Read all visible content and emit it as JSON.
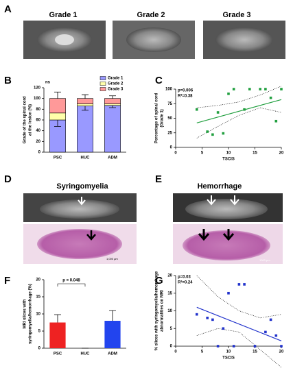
{
  "figures": [
    {
      "label": "A",
      "titles": [
        "Grade 1",
        "Grade 2",
        "Grade 3"
      ]
    },
    {
      "label": "D",
      "title": "Syringomyelia",
      "scale": "1,000 μm"
    },
    {
      "label": "E",
      "title": "Hemorrhage",
      "scale": "1000 μm"
    }
  ],
  "chart_data": [
    {
      "type": "bar",
      "label": "B",
      "stacked": true,
      "ylabel": [
        "Grade of the spinal cord",
        "at the lesion (%)"
      ],
      "categories": [
        "PSC",
        "HUC",
        "ADM"
      ],
      "series": [
        {
          "name": "Grade 1",
          "color": "#9999ff",
          "values": [
            60,
            86,
            87
          ],
          "errors": [
            12,
            8,
            4
          ]
        },
        {
          "name": "Grade 2",
          "color": "#ffffaa",
          "values": [
            13,
            4,
            3
          ]
        },
        {
          "name": "Grade 3",
          "color": "#ff9999",
          "values": [
            27,
            10,
            10
          ],
          "errors": [
            12,
            7,
            5
          ]
        }
      ],
      "ylim": [
        0,
        120
      ],
      "yticks": [
        0,
        20,
        40,
        60,
        80,
        100,
        120
      ],
      "annotations": [
        "ns"
      ],
      "legend": "top-right"
    },
    {
      "type": "scatter",
      "label": "C",
      "color": "#22a040",
      "ylabel": [
        "Percentage of spinal cord",
        "(Grade 1)"
      ],
      "xlabel": "TSCIS",
      "x": [
        4,
        6,
        7,
        8,
        9,
        10,
        11,
        13,
        14,
        16,
        17,
        18,
        19,
        20
      ],
      "y": [
        65,
        27,
        22,
        60,
        24,
        92,
        100,
        65,
        100,
        100,
        100,
        85,
        45,
        100
      ],
      "fit_x": [
        4,
        20
      ],
      "fit_y": [
        42,
        82
      ],
      "ci_x": [
        4,
        8,
        12,
        16,
        20
      ],
      "ci_upper": [
        68,
        72,
        78,
        90,
        105
      ],
      "ci_lower": [
        16,
        36,
        55,
        68,
        60
      ],
      "xlim": [
        0,
        20
      ],
      "xticks": [
        0,
        5,
        10,
        15,
        20
      ],
      "ylim": [
        0,
        100
      ],
      "yticks": [
        0,
        25,
        50,
        75,
        100
      ],
      "annotations": [
        "p=0.006",
        "R²=0.38"
      ]
    },
    {
      "type": "bar",
      "label": "F",
      "ylabel": [
        "MRI slices with",
        "syringomyelia/hemorrhage (%)"
      ],
      "categories": [
        "PSC",
        "HUC",
        "ADM"
      ],
      "values": [
        7.5,
        0,
        8
      ],
      "errors": [
        2.3,
        0,
        3
      ],
      "colors": [
        "#ee2222",
        "#888888",
        "#2244ee"
      ],
      "ylim": [
        0,
        20
      ],
      "yticks": [
        0,
        5,
        10,
        15,
        20
      ],
      "annotations": [
        "p = 0.048"
      ]
    },
    {
      "type": "scatter",
      "label": "G",
      "color": "#2233cc",
      "ylabel": [
        "% slices with syringomyelia/hemorrhage",
        "abnormalities on MRI"
      ],
      "xlabel": "TSCIS",
      "x": [
        4,
        6,
        7,
        8,
        9,
        10,
        11,
        12,
        13,
        15,
        17,
        18,
        19,
        20
      ],
      "y": [
        9,
        8,
        7.5,
        0,
        5,
        15,
        0,
        17.5,
        17.5,
        0,
        4,
        7.5,
        3,
        0
      ],
      "fit_x": [
        4,
        20
      ],
      "fit_y": [
        11,
        1.5
      ],
      "ci_x": [
        4,
        8,
        12,
        16,
        20
      ],
      "ci_upper": [
        20,
        14,
        10,
        8,
        9
      ],
      "ci_lower": [
        3,
        5,
        4,
        -1,
        -6
      ],
      "xlim": [
        0,
        20
      ],
      "xticks": [
        0,
        5,
        10,
        15,
        20
      ],
      "ylim": [
        0,
        20
      ],
      "yticks": [
        0,
        5,
        10,
        15,
        20
      ],
      "annotations": [
        "p=0.03",
        "R²=0.24"
      ]
    }
  ]
}
